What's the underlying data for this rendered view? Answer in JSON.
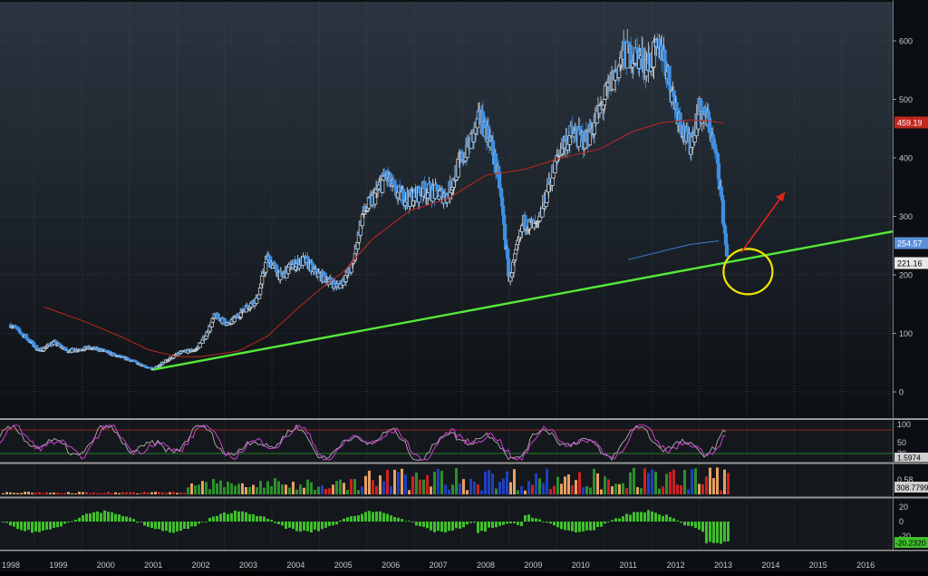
{
  "chart_data": [
    {
      "panel": "price",
      "type": "candlestick",
      "x_range": [
        "1998",
        "2016"
      ],
      "ylim": [
        -30,
        660
      ],
      "y_ticks": [
        0,
        100,
        200,
        300,
        400,
        500,
        600
      ],
      "last_price_label": "221.16",
      "moving_average_label": "459.19",
      "moving_average_short_label": "254.57",
      "colors": {
        "up": "#d8d8d8",
        "down": "#3f8fe0",
        "ma_long": "#c0281e",
        "ma_short": "#3b82d8",
        "trendline": "#55e83a",
        "annotation_circle": "#f2e600",
        "annotation_arrow": "#e0241b"
      },
      "price_path": [
        [
          1998.0,
          115
        ],
        [
          1998.3,
          95
        ],
        [
          1998.6,
          70
        ],
        [
          1998.9,
          85
        ],
        [
          1999.2,
          70
        ],
        [
          1999.6,
          75
        ],
        [
          1999.9,
          72
        ],
        [
          2000.2,
          62
        ],
        [
          2000.5,
          55
        ],
        [
          2000.8,
          45
        ],
        [
          2001.0,
          38
        ],
        [
          2001.3,
          55
        ],
        [
          2001.6,
          68
        ],
        [
          2001.9,
          72
        ],
        [
          2002.1,
          95
        ],
        [
          2002.3,
          130
        ],
        [
          2002.6,
          115
        ],
        [
          2002.9,
          140
        ],
        [
          2003.2,
          160
        ],
        [
          2003.4,
          230
        ],
        [
          2003.7,
          195
        ],
        [
          2003.9,
          215
        ],
        [
          2004.2,
          225
        ],
        [
          2004.4,
          205
        ],
        [
          2004.7,
          190
        ],
        [
          2004.9,
          180
        ],
        [
          2005.2,
          215
        ],
        [
          2005.4,
          300
        ],
        [
          2005.7,
          340
        ],
        [
          2005.9,
          370
        ],
        [
          2006.1,
          340
        ],
        [
          2006.4,
          330
        ],
        [
          2006.7,
          345
        ],
        [
          2006.9,
          340
        ],
        [
          2007.2,
          335
        ],
        [
          2007.4,
          380
        ],
        [
          2007.7,
          430
        ],
        [
          2007.9,
          470
        ],
        [
          2008.1,
          430
        ],
        [
          2008.3,
          350
        ],
        [
          2008.5,
          190
        ],
        [
          2008.8,
          290
        ],
        [
          2009.1,
          280
        ],
        [
          2009.3,
          345
        ],
        [
          2009.6,
          420
        ],
        [
          2009.8,
          440
        ],
        [
          2010.1,
          430
        ],
        [
          2010.3,
          460
        ],
        [
          2010.6,
          520
        ],
        [
          2010.9,
          575
        ],
        [
          2011.2,
          575
        ],
        [
          2011.4,
          560
        ],
        [
          2011.7,
          590
        ],
        [
          2011.9,
          520
        ],
        [
          2012.1,
          460
        ],
        [
          2012.3,
          420
        ],
        [
          2012.5,
          480
        ],
        [
          2012.7,
          460
        ],
        [
          2012.9,
          380
        ],
        [
          2013.0,
          300
        ],
        [
          2013.1,
          221
        ]
      ],
      "ma_long_path": [
        [
          1998.7,
          145
        ],
        [
          1999.5,
          122
        ],
        [
          2000.3,
          95
        ],
        [
          2000.9,
          72
        ],
        [
          2001.5,
          60
        ],
        [
          2002.0,
          60
        ],
        [
          2002.8,
          70
        ],
        [
          2003.4,
          95
        ],
        [
          2004.0,
          140
        ],
        [
          2004.5,
          175
        ],
        [
          2005.0,
          205
        ],
        [
          2005.6,
          260
        ],
        [
          2006.4,
          310
        ],
        [
          2007.2,
          330
        ],
        [
          2008.0,
          370
        ],
        [
          2008.8,
          380
        ],
        [
          2009.6,
          400
        ],
        [
          2010.4,
          415
        ],
        [
          2011.1,
          445
        ],
        [
          2011.7,
          460
        ],
        [
          2012.3,
          465
        ],
        [
          2012.8,
          462
        ],
        [
          2013.0,
          459
        ]
      ],
      "ma_short_path": [
        [
          2011.0,
          226
        ],
        [
          2011.7,
          240
        ],
        [
          2012.3,
          252
        ],
        [
          2012.9,
          258
        ]
      ],
      "trendline": [
        [
          2001.0,
          38
        ],
        [
          2016.5,
          270
        ]
      ],
      "annotation_circle": {
        "x": 2012.95,
        "y": 218
      },
      "annotation_arrow": [
        [
          2013.1,
          240
        ],
        [
          2013.9,
          338
        ]
      ]
    },
    {
      "panel": "oscillator",
      "type": "line",
      "ylim": [
        0,
        100
      ],
      "y_ticks": [
        100,
        50,
        20
      ],
      "last_value_label": "1.5974",
      "levels": [
        80,
        20
      ],
      "colors": {
        "k": "#d040d0",
        "d": "#c0c0c0",
        "upper_level": "#c0281e",
        "lower_level": "#2aa02a"
      }
    },
    {
      "panel": "volume",
      "type": "bar",
      "y_ticks": [
        0.58
      ],
      "last_value_label": "308.7799",
      "colors": {
        "green": "#2c8f2c",
        "orange": "#e8a060",
        "blue": "#2040c0",
        "red": "#d02020"
      }
    },
    {
      "panel": "histogram",
      "type": "bar",
      "ylim": [
        -30,
        30
      ],
      "y_ticks": [
        20,
        0,
        -20
      ],
      "last_value_label": "-20.2320",
      "colors": {
        "bar": "#3fbf2a"
      }
    }
  ],
  "x_axis": {
    "years": [
      "1998",
      "1999",
      "2000",
      "2001",
      "2002",
      "2003",
      "2004",
      "2005",
      "2006",
      "2007",
      "2008",
      "2009",
      "2010",
      "2011",
      "2012",
      "2013",
      "2014",
      "2015",
      "2016"
    ]
  }
}
